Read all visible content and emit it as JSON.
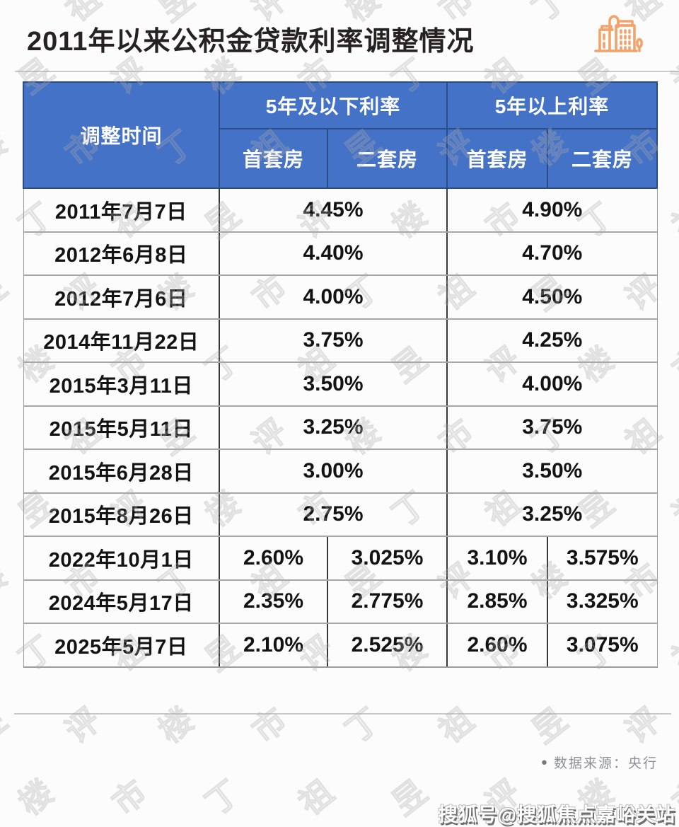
{
  "title": "2011年以来公积金贷款利率调整情况",
  "colors": {
    "header_blue": "#4472c6",
    "header_border_navy": "#2b4c84",
    "accent_orange": "#f2a36b",
    "row_line_gray": "#a6a6a6",
    "col_line_dark": "#383838",
    "source_gray": "#8d9197"
  },
  "icons": {
    "buildings_icon": "buildings-icon"
  },
  "table": {
    "corner_header": "调整时间",
    "group_headers": [
      "5年及以下利率",
      "5年以上利率"
    ],
    "sub_headers": [
      "首套房",
      "二套房",
      "首套房",
      "二套房"
    ],
    "rows": [
      {
        "date": "2011年7月7日",
        "under5": "4.45%",
        "over5": "4.90%"
      },
      {
        "date": "2012年6月8日",
        "under5": "4.40%",
        "over5": "4.70%"
      },
      {
        "date": "2012年7月6日",
        "under5": "4.00%",
        "over5": "4.50%"
      },
      {
        "date": "2014年11月22日",
        "under5": "3.75%",
        "over5": "4.25%"
      },
      {
        "date": "2015年3月11日",
        "under5": "3.50%",
        "over5": "4.00%"
      },
      {
        "date": "2015年5月11日",
        "under5": "3.25%",
        "over5": "3.75%"
      },
      {
        "date": "2015年6月28日",
        "under5": "3.00%",
        "over5": "3.50%"
      },
      {
        "date": "2015年8月26日",
        "under5": "2.75%",
        "over5": "3.25%"
      },
      {
        "date": "2022年10月1日",
        "values": [
          "2.60%",
          "3.025%",
          "3.10%",
          "3.575%"
        ]
      },
      {
        "date": "2024年5月17日",
        "values": [
          "2.35%",
          "2.775%",
          "2.85%",
          "3.325%"
        ]
      },
      {
        "date": "2025年5月7日",
        "values": [
          "2.10%",
          "2.525%",
          "2.60%",
          "3.075%"
        ]
      }
    ]
  },
  "footer": {
    "bullet": "●",
    "source_text": "数据来源：央行"
  },
  "sohu_watermark": "搜狐号@搜狐焦点嘉峪关站",
  "background_watermark": {
    "chars": [
      "丁",
      "祖",
      "昱",
      "评",
      "楼",
      "市"
    ]
  },
  "chart_data": {
    "type": "table",
    "title": "2011年以来公积金贷款利率调整情况",
    "columns": [
      "调整时间",
      "5年及以下利率-首套房",
      "5年及以下利率-二套房",
      "5年以上利率-首套房",
      "5年以上利率-二套房"
    ],
    "rows": [
      {
        "调整时间": "2011年7月7日",
        "5年及以下利率": "4.45%",
        "5年以上利率": "4.90%"
      },
      {
        "调整时间": "2012年6月8日",
        "5年及以下利率": "4.40%",
        "5年以上利率": "4.70%"
      },
      {
        "调整时间": "2012年7月6日",
        "5年及以下利率": "4.00%",
        "5年以上利率": "4.50%"
      },
      {
        "调整时间": "2014年11月22日",
        "5年及以下利率": "3.75%",
        "5年以上利率": "4.25%"
      },
      {
        "调整时间": "2015年3月11日",
        "5年及以下利率": "3.50%",
        "5年以上利率": "4.00%"
      },
      {
        "调整时间": "2015年5月11日",
        "5年及以下利率": "3.25%",
        "5年以上利率": "3.75%"
      },
      {
        "调整时间": "2015年6月28日",
        "5年及以下利率": "3.00%",
        "5年以上利率": "3.50%"
      },
      {
        "调整时间": "2015年8月26日",
        "5年及以下利率": "2.75%",
        "5年以上利率": "3.25%"
      },
      {
        "调整时间": "2022年10月1日",
        "5年及以下利率-首套房": "2.60%",
        "5年及以下利率-二套房": "3.025%",
        "5年以上利率-首套房": "3.10%",
        "5年以上利率-二套房": "3.575%"
      },
      {
        "调整时间": "2024年5月17日",
        "5年及以下利率-首套房": "2.35%",
        "5年及以下利率-二套房": "2.775%",
        "5年以上利率-首套房": "2.85%",
        "5年以上利率-二套房": "3.325%"
      },
      {
        "调整时间": "2025年5月7日",
        "5年及以下利率-首套房": "2.10%",
        "5年及以下利率-二套房": "2.525%",
        "5年以上利率-首套房": "2.60%",
        "5年以上利率-二套房": "3.075%"
      }
    ],
    "source": "央行"
  }
}
